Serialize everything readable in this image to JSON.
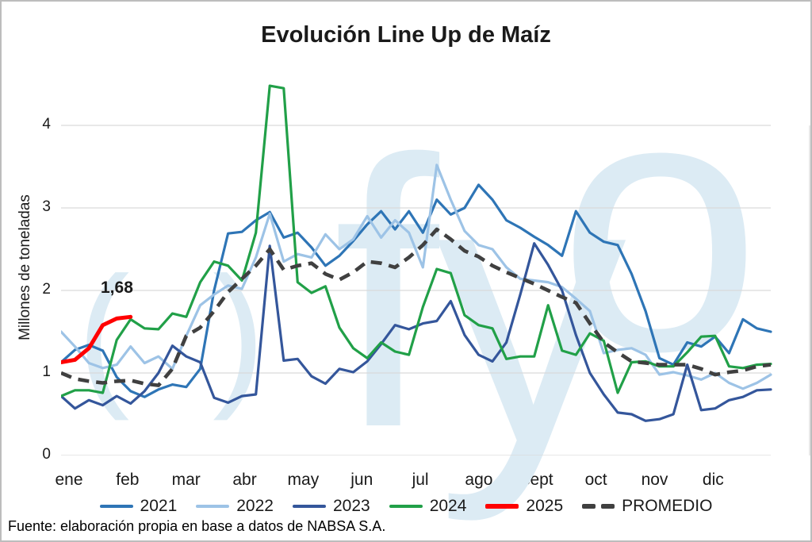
{
  "title": "Evolución Line Up de Maíz",
  "annotation": "1,68",
  "source": "Fuente: elaboración propia en base a datos de NABSA S.A.",
  "watermark": {
    "open_paren": "(",
    "close_paren": ")",
    "f": "f",
    "y": "y",
    "o": "o"
  },
  "colors": {
    "grid": "#d9d9d9",
    "tick": "#bfbfbf",
    "watermark": "#dcebf4",
    "y2021": "#2e75b6",
    "y2022": "#9dc3e6",
    "y2023": "#34569b",
    "y2024": "#21a048",
    "y2025": "#ff0000",
    "promedio": "#404040"
  },
  "legend": {
    "items": [
      {
        "label": "2021",
        "color": "#2e75b6",
        "style": "solid",
        "h": 4
      },
      {
        "label": "2022",
        "color": "#9dc3e6",
        "style": "solid",
        "h": 4
      },
      {
        "label": "2023",
        "color": "#34569b",
        "style": "solid",
        "h": 4
      },
      {
        "label": "2024",
        "color": "#21a048",
        "style": "solid",
        "h": 4
      },
      {
        "label": "2025",
        "color": "#ff0000",
        "style": "solid",
        "h": 6
      },
      {
        "label": "PROMEDIO",
        "color": "#404040",
        "style": "dashed",
        "h": 6
      }
    ]
  },
  "chart_data": {
    "type": "line",
    "title": "Evolución Line Up de Maíz",
    "xlabel": "",
    "ylabel": "Millones de toneladas",
    "ylim": [
      0,
      4.6
    ],
    "yticks": [
      0,
      1,
      2,
      3,
      4
    ],
    "x_unit": "semanas (52 por año)",
    "categories": [
      "ene",
      "feb",
      "mar",
      "abr",
      "may",
      "jun",
      "jul",
      "ago",
      "sept",
      "oct",
      "nov",
      "dic"
    ],
    "grid": "horizontal",
    "legend_position": "bottom",
    "annotation": {
      "text": "1,68",
      "series": "2025",
      "value": 1.68
    },
    "series": [
      {
        "name": "2021",
        "color": "#2e75b6",
        "width": 3.2,
        "dash": null,
        "values": [
          1.13,
          1.28,
          1.34,
          1.27,
          0.95,
          0.78,
          0.71,
          0.8,
          0.86,
          0.83,
          1.05,
          2.0,
          2.69,
          2.71,
          2.85,
          2.95,
          2.64,
          2.7,
          2.52,
          2.3,
          2.42,
          2.6,
          2.8,
          2.96,
          2.74,
          2.96,
          2.7,
          3.1,
          2.92,
          3.0,
          3.28,
          3.1,
          2.85,
          2.76,
          2.65,
          2.55,
          2.42,
          2.96,
          2.7,
          2.59,
          2.55,
          2.2,
          1.75,
          1.18,
          1.1,
          1.37,
          1.32,
          1.44,
          1.24,
          1.65,
          1.54,
          1.5
        ]
      },
      {
        "name": "2022",
        "color": "#9dc3e6",
        "width": 3.2,
        "dash": null,
        "values": [
          1.5,
          1.32,
          1.12,
          1.06,
          1.1,
          1.32,
          1.12,
          1.2,
          1.05,
          1.45,
          1.82,
          1.95,
          2.06,
          2.02,
          2.4,
          2.93,
          2.35,
          2.44,
          2.4,
          2.68,
          2.5,
          2.62,
          2.9,
          2.64,
          2.85,
          2.7,
          2.28,
          3.52,
          3.1,
          2.72,
          2.55,
          2.5,
          2.28,
          2.14,
          2.12,
          2.1,
          2.04,
          1.9,
          1.75,
          1.24,
          1.28,
          1.3,
          1.22,
          0.98,
          1.01,
          0.97,
          0.92,
          1.0,
          0.88,
          0.81,
          0.88,
          0.98
        ]
      },
      {
        "name": "2023",
        "color": "#34569b",
        "width": 3.2,
        "dash": null,
        "values": [
          0.72,
          0.57,
          0.67,
          0.61,
          0.72,
          0.63,
          0.78,
          1.0,
          1.33,
          1.2,
          1.13,
          0.7,
          0.64,
          0.72,
          0.74,
          2.54,
          1.15,
          1.17,
          0.96,
          0.87,
          1.05,
          1.01,
          1.14,
          1.35,
          1.58,
          1.53,
          1.6,
          1.63,
          1.87,
          1.46,
          1.22,
          1.14,
          1.37,
          1.95,
          2.57,
          2.31,
          2.0,
          1.46,
          1.0,
          0.74,
          0.52,
          0.5,
          0.42,
          0.44,
          0.5,
          1.1,
          0.55,
          0.57,
          0.67,
          0.71,
          0.79,
          0.8
        ]
      },
      {
        "name": "2024",
        "color": "#21a048",
        "width": 3.2,
        "dash": null,
        "values": [
          0.72,
          0.79,
          0.79,
          0.76,
          1.4,
          1.65,
          1.54,
          1.53,
          1.72,
          1.68,
          2.1,
          2.35,
          2.3,
          2.12,
          2.7,
          4.48,
          4.45,
          2.1,
          1.97,
          2.05,
          1.55,
          1.3,
          1.18,
          1.37,
          1.26,
          1.22,
          1.8,
          2.26,
          2.21,
          1.7,
          1.58,
          1.54,
          1.17,
          1.2,
          1.2,
          1.82,
          1.27,
          1.22,
          1.48,
          1.39,
          0.76,
          1.13,
          1.14,
          1.08,
          1.08,
          1.25,
          1.44,
          1.45,
          1.08,
          1.06,
          1.1,
          1.11
        ]
      },
      {
        "name": "2025",
        "color": "#ff0000",
        "width": 5,
        "dash": null,
        "values": [
          1.13,
          1.16,
          1.3,
          1.58,
          1.66,
          1.68
        ]
      },
      {
        "name": "PROMEDIO",
        "color": "#404040",
        "width": 4.6,
        "dash": [
          14,
          9
        ],
        "values": [
          1.0,
          0.93,
          0.9,
          0.88,
          0.9,
          0.91,
          0.87,
          0.85,
          1.05,
          1.45,
          1.55,
          1.75,
          1.98,
          2.14,
          2.3,
          2.5,
          2.25,
          2.3,
          2.33,
          2.2,
          2.13,
          2.22,
          2.35,
          2.33,
          2.28,
          2.4,
          2.55,
          2.74,
          2.62,
          2.48,
          2.41,
          2.3,
          2.22,
          2.15,
          2.08,
          2.0,
          1.92,
          1.85,
          1.6,
          1.37,
          1.25,
          1.14,
          1.12,
          1.1,
          1.1,
          1.1,
          1.05,
          0.98,
          1.01,
          1.03,
          1.08,
          1.1
        ]
      }
    ]
  }
}
